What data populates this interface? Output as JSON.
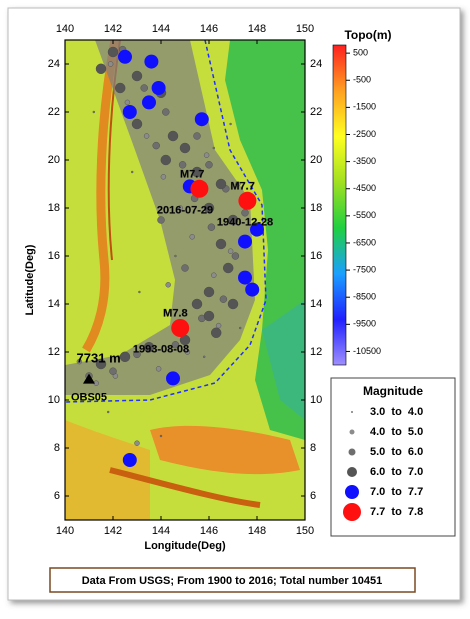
{
  "chart_data": {
    "type": "scatter",
    "x_label": "Longitude(Deg)",
    "y_label": "Latitude(Deg)",
    "xlim": [
      140,
      150
    ],
    "ylim": [
      5,
      25
    ],
    "xticks": [
      140,
      142,
      144,
      146,
      148,
      150
    ],
    "yticks": [
      6,
      8,
      10,
      12,
      14,
      16,
      18,
      20,
      22,
      24
    ],
    "legend_title": "Magnitude",
    "series": [
      {
        "name": "3.0  to  4.0",
        "color": "#7a7a7a",
        "x": [
          141.2,
          142.8,
          144.6,
          146.2,
          147.3,
          143.1,
          145.8,
          141.8,
          144.0,
          146.9
        ],
        "y": [
          22.0,
          19.5,
          16.0,
          20.5,
          13.0,
          14.5,
          11.8,
          9.5,
          8.5,
          21.5
        ]
      },
      {
        "name": "4.0  to  5.0",
        "color": "#8c8c8c",
        "x": [
          141.9,
          142.6,
          143.4,
          144.1,
          144.8,
          145.3,
          146.2,
          146.9,
          146.4,
          145.1,
          143.9,
          142.1,
          141.3,
          140.6,
          144.3,
          145.9,
          147.2,
          143.0
        ],
        "y": [
          24.0,
          22.4,
          21.0,
          19.3,
          18.0,
          16.8,
          15.2,
          16.2,
          13.1,
          12.0,
          11.3,
          11.0,
          10.7,
          11.6,
          14.8,
          20.2,
          19.0,
          8.2
        ]
      },
      {
        "name": "5.0  to  6.0",
        "color": "#6e6e6e",
        "x": [
          142.4,
          143.3,
          144.2,
          143.8,
          144.9,
          145.4,
          146.1,
          146.7,
          147.1,
          146.6,
          145.7,
          144.6,
          143.0,
          142.0,
          141.0,
          145.0,
          144.0,
          146.0,
          147.5,
          145.5
        ],
        "y": [
          24.6,
          23.0,
          22.0,
          20.6,
          19.8,
          18.4,
          17.2,
          18.8,
          16.0,
          14.2,
          13.4,
          12.3,
          11.9,
          11.2,
          11.0,
          15.5,
          17.5,
          19.8,
          17.8,
          21.0
        ]
      },
      {
        "name": "6.0  to  7.0",
        "color": "#555555",
        "x": [
          142.0,
          141.5,
          143.0,
          142.3,
          144.0,
          143.0,
          144.5,
          145.0,
          144.2,
          145.5,
          146.5,
          146.0,
          147.0,
          146.5,
          146.8,
          146.0,
          145.5,
          146.0,
          145.0,
          143.5,
          142.5,
          141.5,
          146.3,
          147.0
        ],
        "y": [
          24.5,
          23.8,
          23.5,
          23.0,
          22.8,
          21.5,
          21.0,
          20.5,
          20.0,
          19.5,
          19.0,
          18.0,
          17.5,
          16.5,
          15.5,
          14.5,
          14.0,
          13.5,
          12.5,
          12.2,
          11.8,
          11.5,
          12.8,
          14.0
        ]
      },
      {
        "name": "7.0  to  7.7",
        "color": "#1010ff",
        "x": [
          142.5,
          143.6,
          143.9,
          142.7,
          143.5,
          145.7,
          145.2,
          147.5,
          148.0,
          147.5,
          147.8,
          144.5,
          142.7
        ],
        "y": [
          24.3,
          24.1,
          23.0,
          22.0,
          22.4,
          21.7,
          18.9,
          16.6,
          17.1,
          15.1,
          14.6,
          10.9,
          7.5
        ]
      },
      {
        "name": "7.7  to  7.8",
        "color": "#ff1010",
        "x": [
          145.6,
          147.6,
          144.8
        ],
        "y": [
          18.8,
          18.3,
          13.0
        ]
      }
    ],
    "annotations": [
      "M7.7",
      "2016-07-29",
      "M7.7",
      "1940-12-28",
      "M7.8",
      "1993-08-08",
      "7731 m",
      "OBS05"
    ],
    "colorbar": {
      "title": "Topo(m)",
      "lim": [
        -11000,
        800
      ],
      "ticks": [
        500,
        -500,
        -1500,
        -2500,
        -3500,
        -4500,
        -5500,
        -6500,
        -7500,
        -8500,
        -9500,
        -10500
      ],
      "colors": [
        "#9f8fff",
        "#2020ff",
        "#1aa0ff",
        "#20d040",
        "#a0e020",
        "#ffff20",
        "#ffa020",
        "#ff2020"
      ]
    },
    "footer": "Data From USGS; From 1900 to 2016; Total number 10451"
  }
}
